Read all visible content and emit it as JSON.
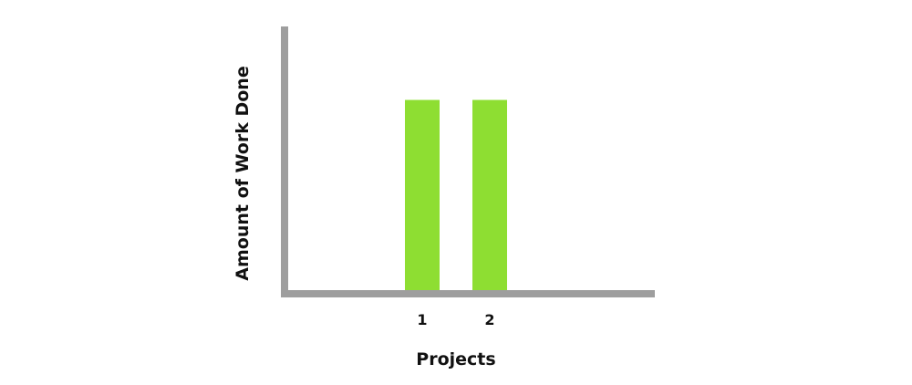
{
  "chart_data": {
    "type": "bar",
    "title": "",
    "xlabel": "Projects",
    "ylabel": "Amount of Work Done",
    "categories": [
      "1",
      "2"
    ],
    "values": [
      1,
      1
    ],
    "ylim": [
      0,
      1.3
    ],
    "grid": false,
    "legend": "none",
    "colors": {
      "bar": "#8ede32",
      "axis": "#9e9e9e",
      "text": "#111111"
    }
  }
}
